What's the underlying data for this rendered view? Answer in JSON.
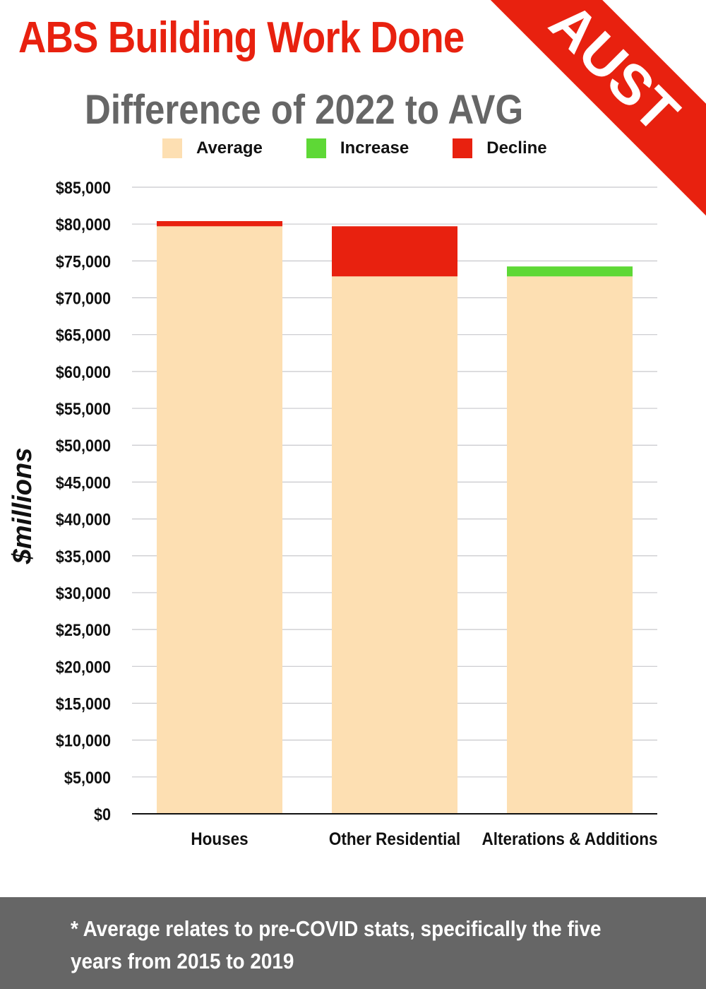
{
  "colors": {
    "average": "#fddfb2",
    "increase": "#5ed836",
    "decline": "#e8210f",
    "accent": "#e8210f",
    "footer": "#666666"
  },
  "banner": "AUST",
  "footnote": "* Average relates to pre-COVID stats, specifically the five years from 2015 to 2019",
  "chart_data": {
    "type": "bar",
    "stacked": true,
    "title": "ABS Building Work Done",
    "subtitle": "Difference of 2022 to AVG",
    "xlabel": "",
    "ylabel": "$millions",
    "ylim": [
      0,
      85000
    ],
    "yticks": [
      0,
      5000,
      10000,
      15000,
      20000,
      25000,
      30000,
      35000,
      40000,
      45000,
      50000,
      55000,
      60000,
      65000,
      70000,
      75000,
      80000,
      85000
    ],
    "ytick_labels": [
      "$0",
      "$5,000",
      "$10,000",
      "$15,000",
      "$20,000",
      "$25,000",
      "$30,000",
      "$35,000",
      "$40,000",
      "$45,000",
      "$50,000",
      "$55,000",
      "$60,000",
      "$65,000",
      "$70,000",
      "$75,000",
      "$80,000",
      "$85,000"
    ],
    "grid": true,
    "legend": {
      "position": "top",
      "entries": [
        "Average",
        "Increase",
        "Decline"
      ]
    },
    "categories": [
      "Houses",
      "Other Residential",
      "Alterations & Additions"
    ],
    "series": [
      {
        "name": "Average",
        "values": [
          79700,
          72900,
          72900
        ]
      },
      {
        "name": "Increase",
        "values": [
          0,
          0,
          1350
        ]
      },
      {
        "name": "Decline",
        "values": [
          700,
          6800,
          0
        ]
      }
    ]
  }
}
